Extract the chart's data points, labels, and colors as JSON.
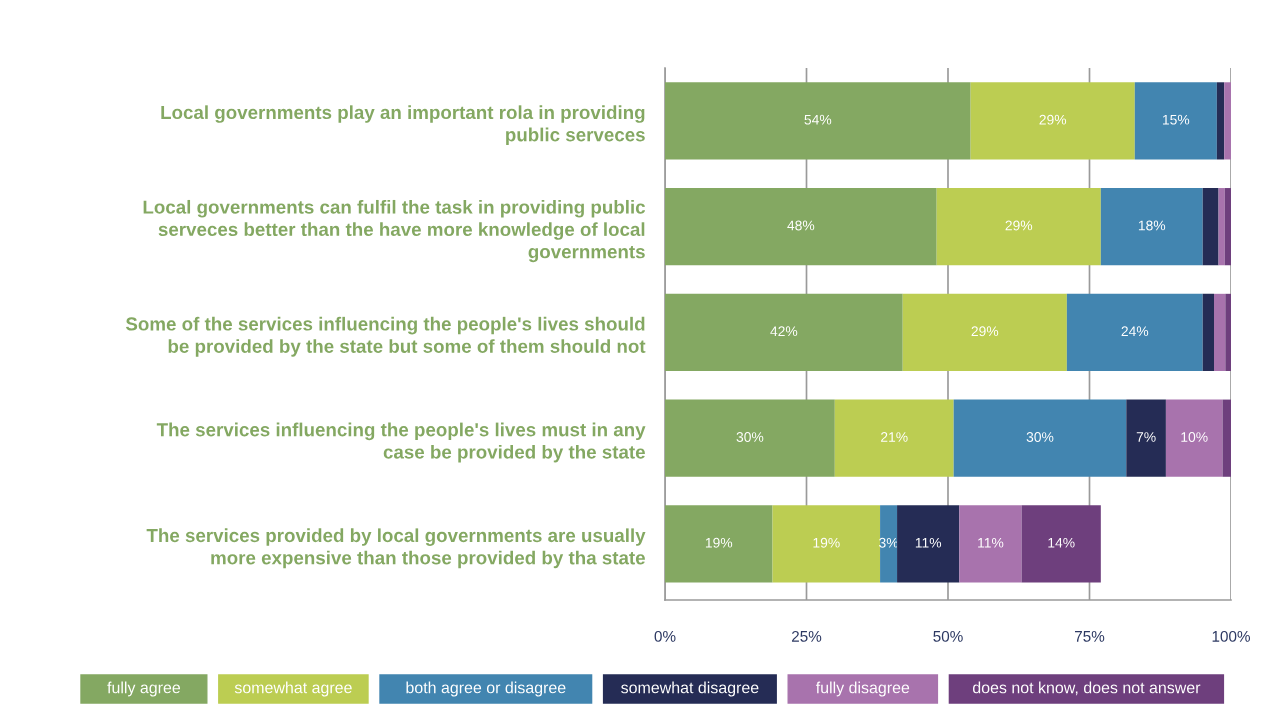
{
  "chart_data": {
    "type": "bar",
    "orientation": "horizontal",
    "stacked": true,
    "categories": [
      "Local governments play an important rola in providing public serveces",
      "Local governments can fulfil the task in providing public serveces better than the have more knowledge of local governments",
      "Some of the services influencing the people's lives should be provided by the state but some of them should not",
      "The services influencing the people's lives must in any case be provided by the state",
      "The services provided by local governments are usually more expensive than those provided by tha state"
    ],
    "series": [
      {
        "name": "fully agree",
        "color": "#84a862",
        "values": [
          54,
          48,
          42,
          30,
          19
        ],
        "value_labels": [
          "54%",
          "48%",
          "42%",
          "30%",
          "19%"
        ]
      },
      {
        "name": "somewhat agree",
        "color": "#bccd52",
        "values": [
          29,
          29,
          29,
          21,
          19
        ],
        "value_labels": [
          "29%",
          "29%",
          "29%",
          "21%",
          "19%"
        ]
      },
      {
        "name": "both agree or disagree",
        "color": "#4285b0",
        "values": [
          14.5,
          18,
          24,
          30.5,
          3
        ],
        "value_labels": [
          "15%",
          "18%",
          "24%",
          "30%",
          "3%"
        ]
      },
      {
        "name": "somewhat disagree",
        "color": "#252c55",
        "values": [
          1.3,
          2.8,
          2,
          7,
          11
        ],
        "value_labels": [
          null,
          null,
          null,
          "7%",
          "11%"
        ]
      },
      {
        "name": "fully disagree",
        "color": "#a873ad",
        "values": [
          1.2,
          1.1,
          2,
          10,
          11
        ],
        "value_labels": [
          null,
          null,
          null,
          "10%",
          "11%"
        ]
      },
      {
        "name": "does not know, does not answer",
        "color": "#6e3f7d",
        "values": [
          0,
          1.1,
          1,
          1.5,
          14
        ],
        "value_labels": [
          null,
          null,
          null,
          null,
          "14%"
        ]
      }
    ],
    "xlim": [
      0,
      100
    ],
    "xticks": [
      {
        "value": 0,
        "label": "0%"
      },
      {
        "value": 25,
        "label": "25%"
      },
      {
        "value": 50,
        "label": "50%"
      },
      {
        "value": 75,
        "label": "75%"
      },
      {
        "value": 100,
        "label": "100%"
      }
    ],
    "grid": "x",
    "legend": "bottom"
  }
}
